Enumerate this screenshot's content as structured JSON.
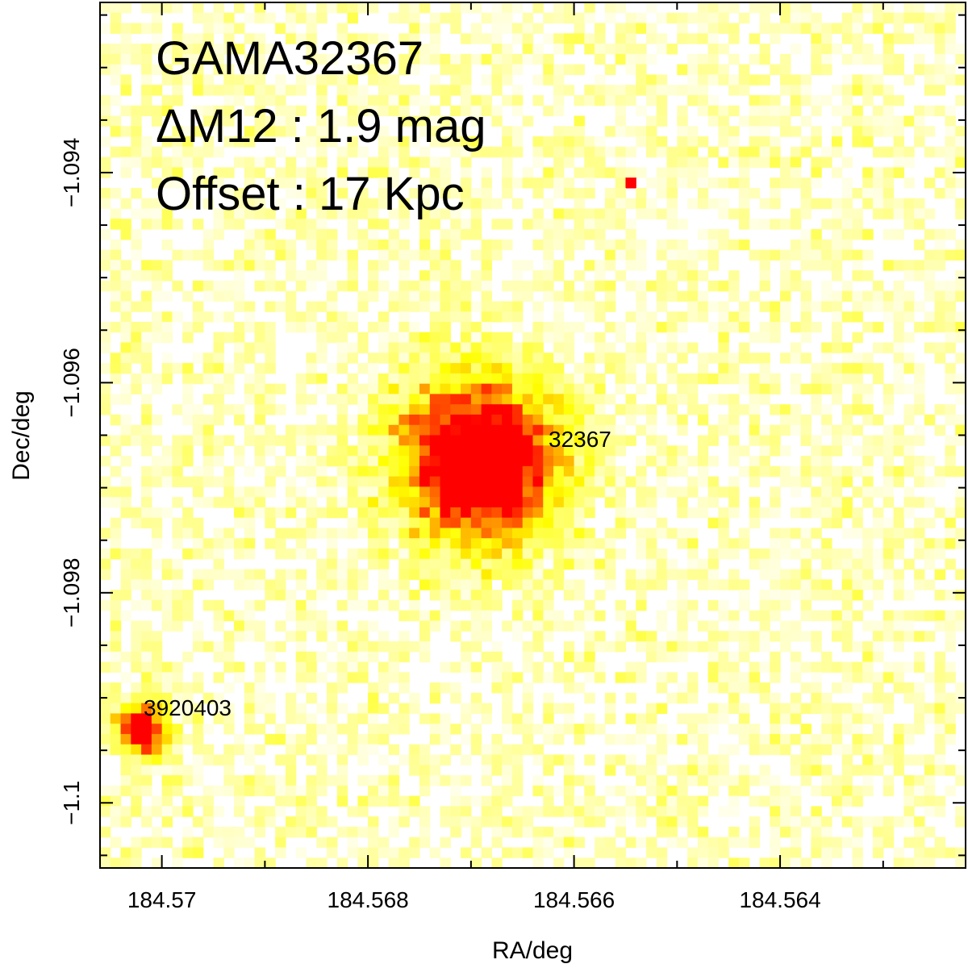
{
  "chart_data": {
    "type": "heatmap",
    "title": "",
    "xlabel": "RA/deg",
    "ylabel": "Dec/deg",
    "x_reversed": true,
    "xlim": [
      184.5706,
      184.5622
    ],
    "ylim": [
      -1.10062,
      -1.09238
    ],
    "x_ticks": [
      184.57,
      184.568,
      184.566,
      184.564
    ],
    "x_tick_labels": [
      "184.57",
      "184.568",
      "184.566",
      "184.564"
    ],
    "y_ticks": [
      -1.094,
      -1.096,
      -1.098,
      -1.1
    ],
    "y_tick_labels": [
      "−1.094",
      "−1.096",
      "−1.098",
      "−1.1"
    ],
    "colormap": [
      "#ffffff",
      "#ffff00",
      "#ff0000"
    ],
    "annotations": [
      "GAMA32367",
      "ΔM12 : 1.9 mag",
      "Offset : 17 Kpc"
    ],
    "sources": [
      {
        "label": "32367",
        "ra": 184.5669,
        "dec": -1.09675,
        "peak": 1.0,
        "sigma": 0.00055
      },
      {
        "label": "3920403",
        "ra": 184.5702,
        "dec": -1.0993,
        "peak": 0.85,
        "sigma": 0.00018
      }
    ],
    "hot_pixels": [
      {
        "ra": 184.5655,
        "dec": -1.09405
      }
    ],
    "pixel_grid": {
      "nx": 84,
      "ny": 84
    },
    "grid": false,
    "legend": "none"
  }
}
